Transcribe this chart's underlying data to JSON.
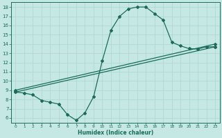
{
  "background_color": "#c5e8e5",
  "grid_color": "#afd8d5",
  "line_color": "#1a6b5a",
  "xlabel": "Humidex (Indice chaleur)",
  "xlim": [
    -0.5,
    23.5
  ],
  "ylim": [
    5.5,
    18.5
  ],
  "xticks": [
    0,
    1,
    2,
    3,
    4,
    5,
    6,
    7,
    8,
    9,
    10,
    11,
    12,
    13,
    14,
    15,
    16,
    17,
    18,
    19,
    20,
    21,
    22,
    23
  ],
  "yticks": [
    6,
    7,
    8,
    9,
    10,
    11,
    12,
    13,
    14,
    15,
    16,
    17,
    18
  ],
  "line1_x": [
    0,
    1,
    2,
    3,
    4,
    5,
    6,
    7,
    8,
    9,
    10,
    11,
    12,
    13,
    14,
    15,
    16,
    17,
    18,
    19,
    20,
    21,
    22,
    23
  ],
  "line1_y": [
    8.8,
    8.7,
    8.5,
    7.9,
    7.7,
    7.5,
    6.35,
    5.75,
    6.55,
    8.3,
    12.2,
    15.5,
    17.0,
    17.8,
    18.0,
    18.0,
    17.3,
    16.6,
    14.2,
    13.8,
    13.5,
    13.45,
    13.7,
    13.7
  ],
  "line2_x": [
    0,
    23
  ],
  "line2_y": [
    8.8,
    13.7
  ],
  "line3_x": [
    0,
    23
  ],
  "line3_y": [
    9.0,
    14.0
  ],
  "marker": "D",
  "markersize": 2.0,
  "linewidth": 0.9
}
